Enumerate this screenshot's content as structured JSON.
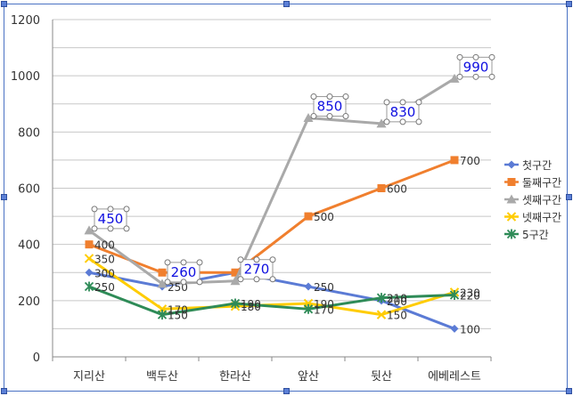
{
  "chart_data": {
    "type": "line",
    "title": "",
    "xlabel": "",
    "ylabel": "",
    "ylim": [
      0,
      1200
    ],
    "ytick_step": 100,
    "ytick_label_step": 200,
    "grid": true,
    "legend_position": "right",
    "categories": [
      "지리산",
      "백두산",
      "한라산",
      "앞산",
      "뒷산",
      "에베레스트"
    ],
    "series": [
      {
        "name": "첫구간",
        "color": "#5b7bd5",
        "marker": "diamond",
        "values": [
          300,
          250,
          300,
          250,
          200,
          100
        ]
      },
      {
        "name": "둘째구간",
        "color": "#f07f2e",
        "marker": "square",
        "values": [
          400,
          300,
          300,
          500,
          600,
          700
        ]
      },
      {
        "name": "셋째구간",
        "color": "#a9a9a9",
        "marker": "triangle",
        "values": [
          450,
          260,
          270,
          850,
          830,
          990
        ]
      },
      {
        "name": "넷째구간",
        "color": "#ffcc00",
        "marker": "x",
        "values": [
          350,
          170,
          180,
          190,
          150,
          230
        ]
      },
      {
        "name": "5구간",
        "color": "#2e8b57",
        "marker": "star",
        "values": [
          250,
          150,
          190,
          170,
          210,
          220
        ]
      }
    ],
    "highlighted_series": "셋째구간",
    "highlight_label_color": "#1010e0"
  }
}
